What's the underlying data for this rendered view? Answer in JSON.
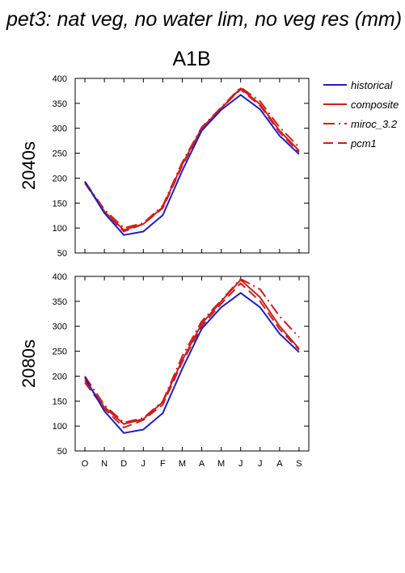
{
  "title": "pet3: nat veg, no water lim, no veg res (mm)",
  "scenario": "A1B",
  "colors": {
    "historical": "#1f1fbf",
    "future": "#cc1f1f"
  },
  "legend": [
    {
      "name": "historical",
      "color": "#1f1fbf",
      "dash": "solid"
    },
    {
      "name": "composite",
      "color": "#cc1f1f",
      "dash": "solid"
    },
    {
      "name": "miroc_3.2",
      "color": "#cc1f1f",
      "dash": "dashdot"
    },
    {
      "name": "pcm1",
      "color": "#cc1f1f",
      "dash": "dashed"
    }
  ],
  "chart_data": [
    {
      "type": "line",
      "ylabel": "2040s",
      "categories": [
        "O",
        "N",
        "D",
        "J",
        "F",
        "M",
        "A",
        "M",
        "J",
        "J",
        "A",
        "S"
      ],
      "ylim": [
        50,
        400
      ],
      "yticks": [
        50,
        100,
        150,
        200,
        250,
        300,
        350,
        400
      ],
      "series": [
        {
          "name": "historical",
          "values": [
            193,
            130,
            86,
            93,
            126,
            215,
            295,
            337,
            367,
            338,
            285,
            248
          ]
        },
        {
          "name": "composite",
          "values": [
            193,
            133,
            96,
            108,
            142,
            228,
            300,
            340,
            380,
            348,
            295,
            255
          ]
        },
        {
          "name": "miroc_3.2",
          "values": [
            193,
            137,
            100,
            110,
            145,
            232,
            302,
            342,
            382,
            354,
            302,
            262
          ]
        },
        {
          "name": "pcm1",
          "values": [
            190,
            133,
            93,
            108,
            140,
            225,
            298,
            340,
            378,
            345,
            292,
            252
          ]
        }
      ]
    },
    {
      "type": "line",
      "ylabel": "2080s",
      "categories": [
        "O",
        "N",
        "D",
        "J",
        "F",
        "M",
        "A",
        "M",
        "J",
        "J",
        "A",
        "S"
      ],
      "ylim": [
        50,
        400
      ],
      "yticks": [
        50,
        100,
        150,
        200,
        250,
        300,
        350,
        400
      ],
      "series": [
        {
          "name": "historical",
          "values": [
            197,
            130,
            86,
            93,
            126,
            215,
            295,
            338,
            367,
            338,
            285,
            248
          ]
        },
        {
          "name": "composite",
          "values": [
            192,
            138,
            104,
            114,
            148,
            232,
            305,
            350,
            393,
            358,
            300,
            255
          ]
        },
        {
          "name": "miroc_3.2",
          "values": [
            200,
            142,
            107,
            116,
            150,
            240,
            310,
            352,
            395,
            374,
            320,
            278
          ]
        },
        {
          "name": "pcm1",
          "values": [
            187,
            135,
            97,
            112,
            143,
            228,
            300,
            345,
            386,
            350,
            294,
            253
          ]
        }
      ]
    }
  ]
}
